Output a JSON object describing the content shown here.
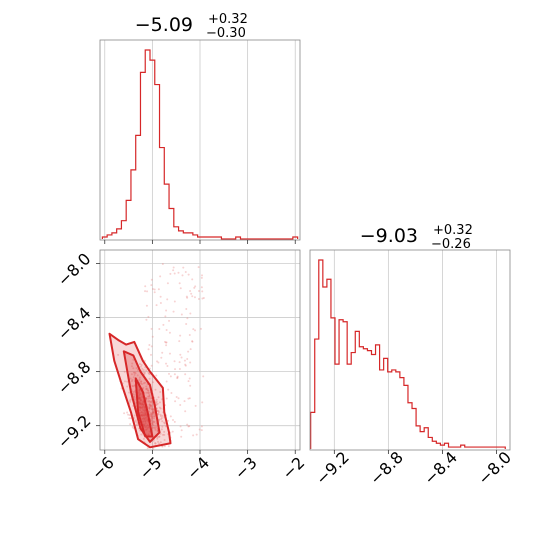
{
  "chart_data": [
    {
      "type": "histogram",
      "panel": "marginal-x",
      "title_main": "−5.09",
      "title_sup": "+0.32",
      "title_sub": "−0.30",
      "xlim": [
        -6.1,
        -1.9
      ],
      "bins": {
        "x": [
          -6.0,
          -5.9,
          -5.8,
          -5.7,
          -5.6,
          -5.5,
          -5.4,
          -5.3,
          -5.2,
          -5.1,
          -5.0,
          -4.9,
          -4.8,
          -4.7,
          -4.6,
          -4.5,
          -4.4,
          -4.3,
          -4.2,
          -4.1,
          -4.0,
          -3.9,
          -3.8,
          -3.7,
          -3.6,
          -3.5,
          -3.4,
          -3.3,
          -3.2,
          -3.1,
          -3.0,
          -2.9,
          -2.8,
          -2.7,
          -2.6,
          -2.5,
          -2.4,
          -2.3,
          -2.2,
          -2.1,
          -2.0
        ],
        "counts": [
          1,
          2,
          3,
          5,
          9,
          19,
          34,
          51,
          82,
          93,
          88,
          76,
          45,
          27,
          15,
          6,
          4,
          3,
          3,
          2,
          1,
          1,
          1,
          1,
          1,
          0,
          0,
          0,
          1,
          0,
          0,
          0,
          0,
          0,
          0,
          0,
          0,
          0,
          0,
          0,
          1
        ]
      },
      "color": "#d62728"
    },
    {
      "type": "scatter",
      "panel": "joint",
      "xlim": [
        -6.1,
        -1.9
      ],
      "ylim": [
        -9.38,
        -7.9
      ],
      "x_ticks": [
        "−6",
        "−5",
        "−4",
        "−3",
        "−2"
      ],
      "y_ticks": [
        "−8.0",
        "−8.4",
        "−8.8",
        "−9.2"
      ],
      "contour_levels": [
        [
          [
            -5.9,
            -8.52
          ],
          [
            -5.7,
            -8.57
          ],
          [
            -5.55,
            -8.6
          ],
          [
            -5.38,
            -8.58
          ],
          [
            -5.2,
            -8.72
          ],
          [
            -5.05,
            -8.8
          ],
          [
            -4.78,
            -8.92
          ],
          [
            -4.75,
            -9.1
          ],
          [
            -4.65,
            -9.25
          ],
          [
            -4.62,
            -9.33
          ],
          [
            -5.05,
            -9.36
          ],
          [
            -5.3,
            -9.3
          ],
          [
            -5.45,
            -9.1
          ],
          [
            -5.62,
            -8.92
          ],
          [
            -5.8,
            -8.72
          ]
        ],
        [
          [
            -5.6,
            -8.65
          ],
          [
            -5.4,
            -8.68
          ],
          [
            -5.25,
            -8.8
          ],
          [
            -5.05,
            -8.9
          ],
          [
            -4.95,
            -9.05
          ],
          [
            -4.85,
            -9.25
          ],
          [
            -5.05,
            -9.32
          ],
          [
            -5.25,
            -9.22
          ],
          [
            -5.45,
            -8.95
          ]
        ],
        [
          [
            -5.35,
            -8.85
          ],
          [
            -5.2,
            -8.95
          ],
          [
            -5.1,
            -9.1
          ],
          [
            -5.0,
            -9.28
          ],
          [
            -5.15,
            -9.28
          ],
          [
            -5.3,
            -9.1
          ]
        ]
      ],
      "color": "#d62728"
    },
    {
      "type": "histogram",
      "panel": "marginal-y",
      "title_main": "−9.03",
      "title_sup": "+0.32",
      "title_sub": "−0.26",
      "xlim": [
        -9.38,
        -7.9
      ],
      "x_ticks": [
        "−9.2",
        "−8.8",
        "−8.4",
        "−8.0"
      ],
      "bins": {
        "x": [
          -9.36,
          -9.33,
          -9.3,
          -9.27,
          -9.24,
          -9.21,
          -9.18,
          -9.15,
          -9.12,
          -9.09,
          -9.06,
          -9.03,
          -9.0,
          -8.97,
          -8.94,
          -8.91,
          -8.88,
          -8.85,
          -8.82,
          -8.79,
          -8.76,
          -8.73,
          -8.7,
          -8.67,
          -8.64,
          -8.61,
          -8.58,
          -8.55,
          -8.52,
          -8.49,
          -8.46,
          -8.43,
          -8.4,
          -8.37,
          -8.34,
          -8.31,
          -8.28,
          -8.25,
          -8.22,
          -8.19,
          -8.16,
          -8.13,
          -8.1,
          -8.07,
          -8.04,
          -8.01,
          -7.98,
          -7.95
        ],
        "counts": [
          19,
          57,
          98,
          84,
          88,
          68,
          44,
          67,
          66,
          44,
          50,
          61,
          53,
          52,
          51,
          49,
          54,
          41,
          47,
          40,
          41,
          40,
          37,
          33,
          24,
          21,
          12,
          9,
          11,
          6,
          4,
          3,
          2,
          3,
          1,
          1,
          1,
          2,
          1,
          1,
          1,
          1,
          1,
          1,
          1,
          1,
          1,
          1
        ]
      },
      "color": "#d62728"
    }
  ]
}
